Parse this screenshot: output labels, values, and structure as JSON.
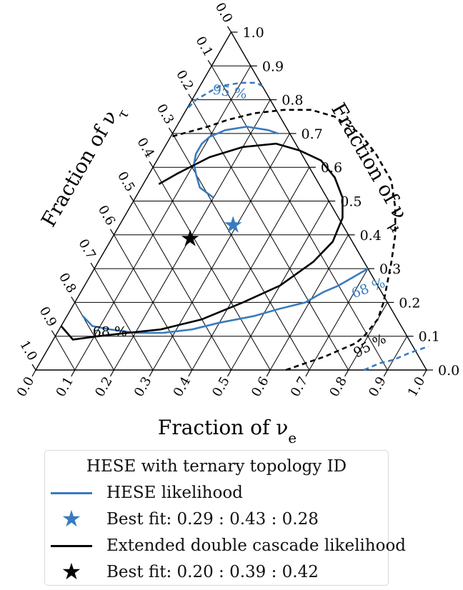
{
  "chart_data": {
    "type": "ternary",
    "axes": {
      "bottom": {
        "label": "Fraction of ν",
        "subscript": "e",
        "ticks": [
          "0.0",
          "0.1",
          "0.2",
          "0.3",
          "0.4",
          "0.5",
          "0.6",
          "0.7",
          "0.8",
          "0.9",
          "1.0"
        ]
      },
      "right": {
        "label": "Fraction of ν",
        "subscript": "μ",
        "ticks": [
          "0.0",
          "0.1",
          "0.2",
          "0.3",
          "0.4",
          "0.5",
          "0.6",
          "0.7",
          "0.8",
          "0.9",
          "1.0"
        ]
      },
      "left": {
        "label": "Fraction of ν",
        "subscript": "τ",
        "ticks": [
          "0.0",
          "0.1",
          "0.2",
          "0.3",
          "0.4",
          "0.5",
          "0.6",
          "0.7",
          "0.8",
          "0.9",
          "1.0"
        ]
      }
    },
    "grid": true,
    "series": [
      {
        "name": "HESE likelihood",
        "color": "#3a7bbf",
        "best_fit": {
          "e": 0.29,
          "mu": 0.43,
          "tau": 0.28
        },
        "contours": [
          {
            "level": "68 %",
            "style": "solid",
            "paths": [
              [
                [
                  0.04,
                  0.16
                ],
                [
                  0.08,
                  0.13
                ],
                [
                  0.13,
                  0.12
                ],
                [
                  0.2,
                  0.11
                ],
                [
                  0.27,
                  0.11
                ],
                [
                  0.34,
                  0.12
                ],
                [
                  0.4,
                  0.14
                ],
                [
                  0.48,
                  0.16
                ],
                [
                  0.53,
                  0.18
                ],
                [
                  0.59,
                  0.2
                ],
                [
                  0.62,
                  0.23
                ],
                [
                  0.65,
                  0.25
                ],
                [
                  0.68,
                  0.28
                ],
                [
                  0.7,
                  0.3
                ]
              ],
              [
                [
                  0.2,
                  0.51
                ],
                [
                  0.15,
                  0.54
                ],
                [
                  0.12,
                  0.58
                ],
                [
                  0.1,
                  0.61
                ],
                [
                  0.09,
                  0.64
                ],
                [
                  0.09,
                  0.67
                ],
                [
                  0.1,
                  0.69
                ],
                [
                  0.13,
                  0.71
                ],
                [
                  0.18,
                  0.72
                ],
                [
                  0.24,
                  0.71
                ],
                [
                  0.27,
                  0.7
                ]
              ]
            ]
          },
          {
            "level": "95 %",
            "style": "dashed",
            "paths": [
              [
                [
                  0.16,
                  0.84
                ],
                [
                  0.14,
                  0.85
                ],
                [
                  0.12,
                  0.85
                ],
                [
                  0.1,
                  0.85
                ],
                [
                  0.05,
                  0.84
                ],
                [
                  0.01,
                  0.8
                ],
                [
                  0.0,
                  0.77
                ]
              ],
              [
                [
                  0.84,
                  0.0
                ],
                [
                  0.87,
                  0.02
                ],
                [
                  0.9,
                  0.03
                ],
                [
                  0.93,
                  0.05
                ],
                [
                  0.97,
                  0.07
                ]
              ]
            ]
          }
        ]
      },
      {
        "name": "Extended double cascade likelihood",
        "color": "#000000",
        "best_fit": {
          "e": 0.2,
          "mu": 0.39,
          "tau": 0.42
        },
        "contours": [
          {
            "level": "68 %",
            "style": "solid",
            "paths": [
              [
                [
                  0.0,
                  0.13
                ],
                [
                  0.05,
                  0.09
                ],
                [
                  0.11,
                  0.1
                ],
                [
                  0.18,
                  0.11
                ],
                [
                  0.26,
                  0.12
                ],
                [
                  0.35,
                  0.15
                ],
                [
                  0.43,
                  0.2
                ],
                [
                  0.5,
                  0.25
                ],
                [
                  0.55,
                  0.32
                ],
                [
                  0.57,
                  0.38
                ],
                [
                  0.56,
                  0.45
                ],
                [
                  0.53,
                  0.51
                ],
                [
                  0.48,
                  0.57
                ],
                [
                  0.42,
                  0.62
                ],
                [
                  0.35,
                  0.65
                ],
                [
                  0.28,
                  0.67
                ],
                [
                  0.2,
                  0.66
                ],
                [
                  0.13,
                  0.63
                ],
                [
                  0.07,
                  0.58
                ],
                [
                  0.04,
                  0.55
                ]
              ]
            ]
          },
          {
            "level": "95 %",
            "style": "dashed",
            "paths": [
              [
                [
                  0.64,
                  0.0
                ],
                [
                  0.68,
                  0.02
                ],
                [
                  0.72,
                  0.04
                ],
                [
                  0.78,
                  0.08
                ],
                [
                  0.79,
                  0.1
                ],
                [
                  0.8,
                  0.15
                ],
                [
                  0.79,
                  0.2
                ],
                [
                  0.75,
                  0.32
                ],
                [
                  0.72,
                  0.4
                ],
                [
                  0.68,
                  0.48
                ],
                [
                  0.63,
                  0.56
                ],
                [
                  0.55,
                  0.64
                ],
                [
                  0.48,
                  0.7
                ],
                [
                  0.39,
                  0.75
                ],
                [
                  0.32,
                  0.77
                ],
                [
                  0.25,
                  0.77
                ],
                [
                  0.18,
                  0.76
                ],
                [
                  0.12,
                  0.74
                ],
                [
                  0.08,
                  0.72
                ],
                [
                  0.0,
                  0.69
                ]
              ]
            ]
          }
        ]
      }
    ],
    "annotations": [
      {
        "text": "95 %",
        "color": "#3a7bbf",
        "e": 0.09,
        "mu": 0.81,
        "angle": 8
      },
      {
        "text": "68 %",
        "color": "#3a7bbf",
        "e": 0.74,
        "mu": 0.23,
        "angle": -20
      },
      {
        "text": "95 %",
        "color": "#000000",
        "e": 0.83,
        "mu": 0.06,
        "angle": -28
      },
      {
        "text": "68 %",
        "color": "#000000",
        "e": 0.14,
        "mu": 0.1,
        "angle": 0
      }
    ]
  },
  "legend": {
    "title": "HESE with ternary topology ID",
    "entries": [
      {
        "label": "HESE likelihood",
        "marker": "line",
        "color": "#3a7bbf"
      },
      {
        "label": "Best fit: 0.29 : 0.43 : 0.28",
        "marker": "star",
        "color": "#3a7bbf"
      },
      {
        "label": "Extended double cascade likelihood",
        "marker": "line",
        "color": "#000000"
      },
      {
        "label": "Best fit: 0.20 : 0.39 : 0.42",
        "marker": "star",
        "color": "#000000"
      }
    ]
  }
}
